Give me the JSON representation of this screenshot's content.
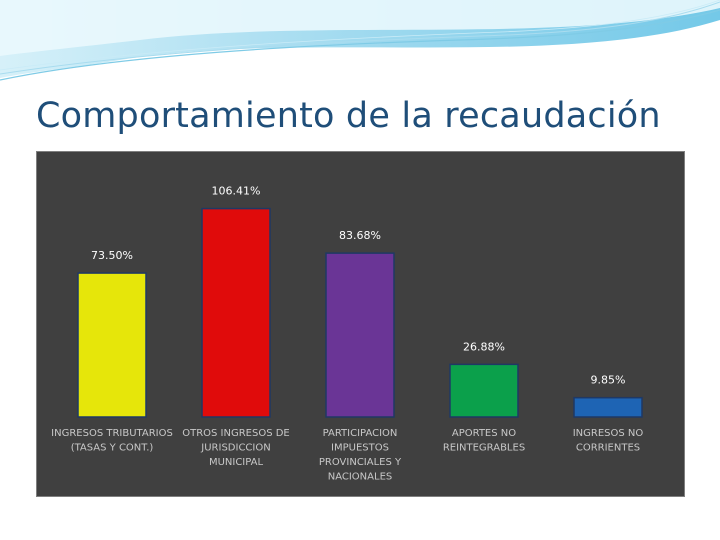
{
  "slide": {
    "title": "Comportamiento de la recaudación"
  },
  "colors": {
    "title": "#1f4e79",
    "panel_background": "#404040",
    "bar_outline": "#1f3864"
  },
  "chart_data": {
    "type": "bar",
    "title": "",
    "xlabel": "",
    "ylabel": "",
    "ylim": [
      0,
      120
    ],
    "grid": false,
    "categories": [
      [
        "INGRESOS TRIBUTARIOS",
        "(TASAS Y CONT.)"
      ],
      [
        "OTROS INGRESOS DE",
        "JURISDICCION",
        "MUNICIPAL"
      ],
      [
        "PARTICIPACION",
        "IMPUESTOS",
        "PROVINCIALES Y",
        "NACIONALES"
      ],
      [
        "APORTES NO",
        "REINTEGRABLES"
      ],
      [
        "INGRESOS NO",
        "CORRIENTES"
      ]
    ],
    "values": [
      73.5,
      106.41,
      83.68,
      26.88,
      9.85
    ],
    "value_labels": [
      "73.50%",
      "106.41%",
      "83.68%",
      "26.88%",
      "9.85%"
    ],
    "bar_colors": [
      "#e6e60a",
      "#e00b0b",
      "#6a3596",
      "#0ba04b",
      "#1e64b4"
    ]
  }
}
